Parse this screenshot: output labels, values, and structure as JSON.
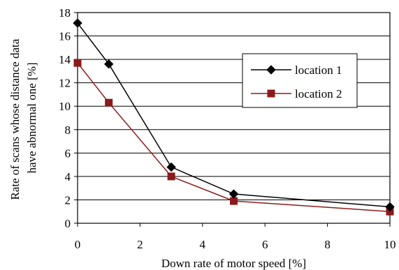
{
  "chart_data": {
    "type": "line",
    "title": "",
    "xlabel": "Down rate of motor speed [%]",
    "ylabel_lines": [
      "Rate of scans whose distance data",
      "have abnormal one [%]"
    ],
    "xlim": [
      0,
      10
    ],
    "ylim": [
      0,
      18
    ],
    "xticks": [
      0,
      2,
      4,
      6,
      8,
      10
    ],
    "yticks": [
      0,
      2,
      4,
      6,
      8,
      10,
      12,
      14,
      16,
      18
    ],
    "grid": "horizontal",
    "legend_position": "right",
    "series": [
      {
        "name": "location 1",
        "marker": "diamond",
        "color": "#000000",
        "x": [
          0,
          1,
          3,
          5,
          10
        ],
        "y": [
          17.1,
          13.6,
          4.8,
          2.5,
          1.4
        ]
      },
      {
        "name": "location 2",
        "marker": "square",
        "color": "#8b1a1a",
        "x": [
          0,
          1,
          3,
          5,
          10
        ],
        "y": [
          13.7,
          10.3,
          4.0,
          1.9,
          1.0
        ]
      }
    ]
  }
}
